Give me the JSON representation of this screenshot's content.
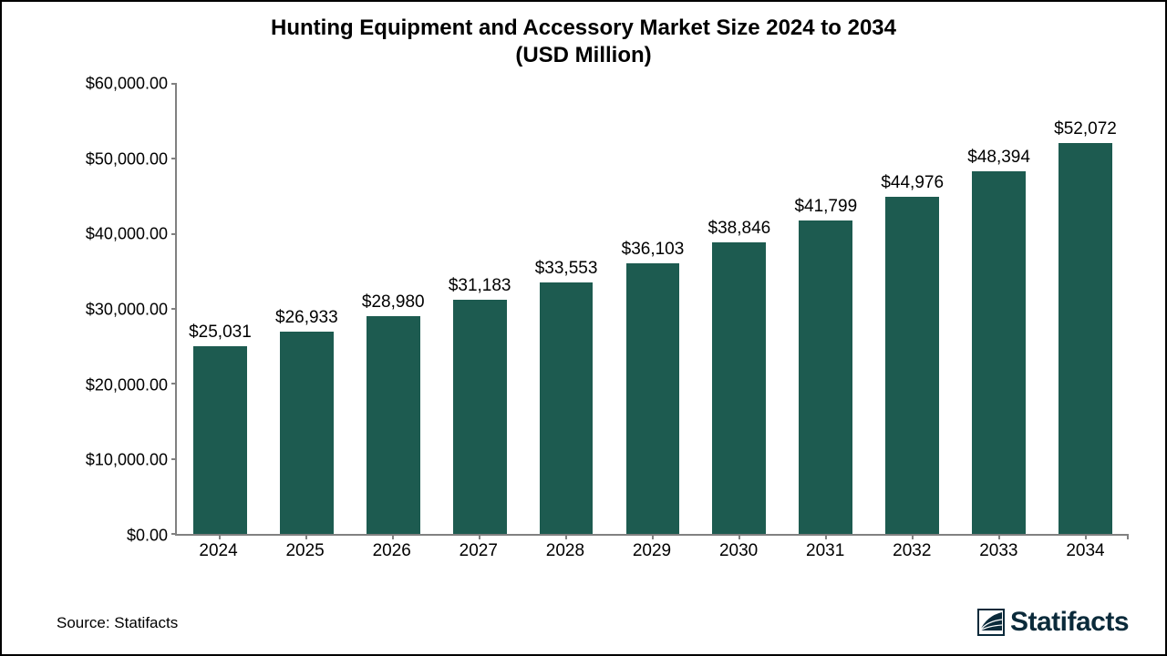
{
  "chart": {
    "type": "bar",
    "title_line1": "Hunting Equipment and Accessory Market Size 2024 to 2034",
    "title_line2": "(USD Million)",
    "title_fontsize": 24,
    "categories": [
      "2024",
      "2025",
      "2026",
      "2027",
      "2028",
      "2029",
      "2030",
      "2031",
      "2032",
      "2033",
      "2034"
    ],
    "values": [
      25031,
      26933,
      28980,
      31183,
      33553,
      36103,
      38846,
      41799,
      44976,
      48394,
      52072
    ],
    "value_labels": [
      "$25,031",
      "$26,933",
      "$28,980",
      "$31,183",
      "$33,553",
      "$36,103",
      "$38,846",
      "$41,799",
      "$44,976",
      "$48,394",
      "$52,072"
    ],
    "bar_color": "#1d5b50",
    "background_color": "#ffffff",
    "border_color": "#000000",
    "axis_color": "#818181",
    "text_color": "#000000",
    "ylim": [
      0,
      60000
    ],
    "ytick_step": 10000,
    "ytick_labels": [
      "$0.00",
      "$10,000.00",
      "$20,000.00",
      "$30,000.00",
      "$40,000.00",
      "$50,000.00",
      "$60,000.00"
    ],
    "bar_width_ratio": 0.62,
    "value_label_fontsize": 19,
    "axis_label_fontsize": 19,
    "ytick_fontsize": 18
  },
  "footer": {
    "source_text": "Source: Statifacts",
    "brand_text": "Statifacts",
    "brand_color": "#0a2a3a"
  }
}
